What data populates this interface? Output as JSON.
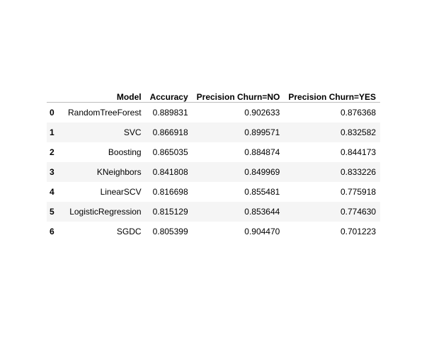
{
  "table": {
    "index_header": "",
    "columns": [
      "Model",
      "Accuracy",
      "Precision Churn=NO",
      "Precision Churn=YES"
    ],
    "rows": [
      {
        "index": "0",
        "model": "RandomTreeForest",
        "accuracy": "0.889831",
        "precision_no": "0.902633",
        "precision_yes": "0.876368"
      },
      {
        "index": "1",
        "model": "SVC",
        "accuracy": "0.866918",
        "precision_no": "0.899571",
        "precision_yes": "0.832582"
      },
      {
        "index": "2",
        "model": "Boosting",
        "accuracy": "0.865035",
        "precision_no": "0.884874",
        "precision_yes": "0.844173"
      },
      {
        "index": "3",
        "model": "KNeighbors",
        "accuracy": "0.841808",
        "precision_no": "0.849969",
        "precision_yes": "0.833226"
      },
      {
        "index": "4",
        "model": "LinearSCV",
        "accuracy": "0.816698",
        "precision_no": "0.855481",
        "precision_yes": "0.775918"
      },
      {
        "index": "5",
        "model": "LogisticRegression",
        "accuracy": "0.815129",
        "precision_no": "0.853644",
        "precision_yes": "0.774630"
      },
      {
        "index": "6",
        "model": "SGDC",
        "accuracy": "0.805399",
        "precision_no": "0.904470",
        "precision_yes": "0.701223"
      }
    ]
  }
}
